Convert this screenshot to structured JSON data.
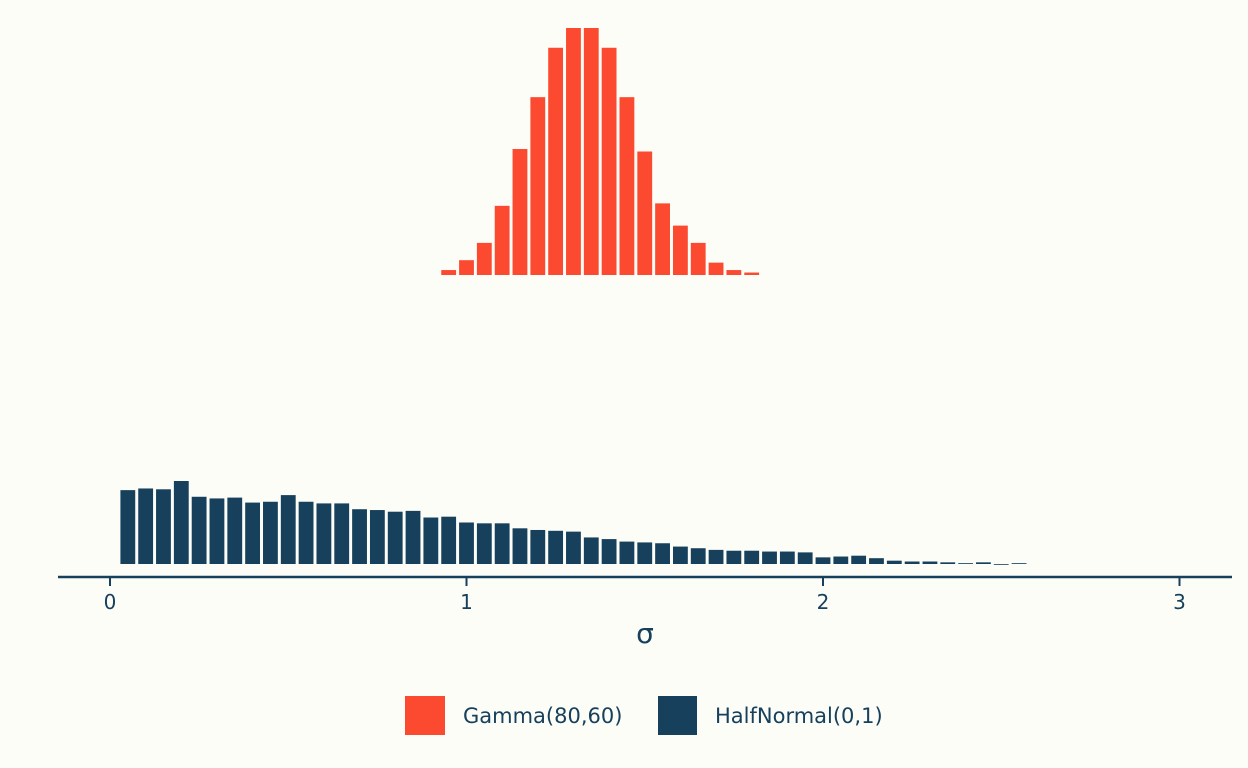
{
  "colors": {
    "background": "#fdfdf8",
    "gamma": "#fc4a30",
    "halfnormal": "#16405c",
    "axis": "#16405c"
  },
  "chart_data": {
    "type": "bar",
    "title": "",
    "xlabel": "σ",
    "ylabel": "",
    "xlim": [
      -0.15,
      3.15
    ],
    "x_ticks": [
      0,
      1,
      2,
      3
    ],
    "x_tick_labels": [
      "0",
      "1",
      "2",
      "3"
    ],
    "grid": false,
    "legend_position": "bottom",
    "bin_width": 0.05,
    "series": [
      {
        "name": "Gamma(80,60)",
        "color": "#fc4a30",
        "bin_starts": [
          0.925,
          0.975,
          1.025,
          1.075,
          1.125,
          1.175,
          1.225,
          1.275,
          1.325,
          1.375,
          1.425,
          1.475,
          1.525,
          1.575,
          1.625,
          1.675,
          1.725,
          1.775
        ],
        "values": [
          2,
          6,
          13,
          28,
          51,
          72,
          92,
          100,
          100,
          92,
          72,
          50,
          29,
          20,
          13,
          5,
          2,
          1
        ]
      },
      {
        "name": "HalfNormal(0,1)",
        "color": "#16405c",
        "bin_starts": [
          0.025,
          0.075,
          0.125,
          0.175,
          0.225,
          0.275,
          0.325,
          0.375,
          0.425,
          0.475,
          0.525,
          0.575,
          0.625,
          0.675,
          0.725,
          0.775,
          0.825,
          0.875,
          0.925,
          0.975,
          1.025,
          1.075,
          1.125,
          1.175,
          1.225,
          1.275,
          1.325,
          1.375,
          1.425,
          1.475,
          1.525,
          1.575,
          1.625,
          1.675,
          1.725,
          1.775,
          1.825,
          1.875,
          1.925,
          1.975,
          2.025,
          2.075,
          2.125,
          2.175,
          2.225,
          2.275,
          2.325,
          2.375,
          2.425,
          2.475,
          2.525
        ],
        "values": [
          89,
          91,
          90,
          100,
          81,
          79,
          80,
          74,
          75,
          83,
          75,
          73,
          73,
          66,
          65,
          63,
          64,
          56,
          57,
          50,
          49,
          49,
          43,
          41,
          40,
          39,
          32,
          30,
          27,
          26,
          25,
          21,
          19,
          17,
          16,
          16,
          15,
          15,
          14,
          8,
          9,
          10,
          7,
          4,
          3,
          3,
          2,
          1,
          2,
          0,
          1
        ]
      }
    ]
  }
}
